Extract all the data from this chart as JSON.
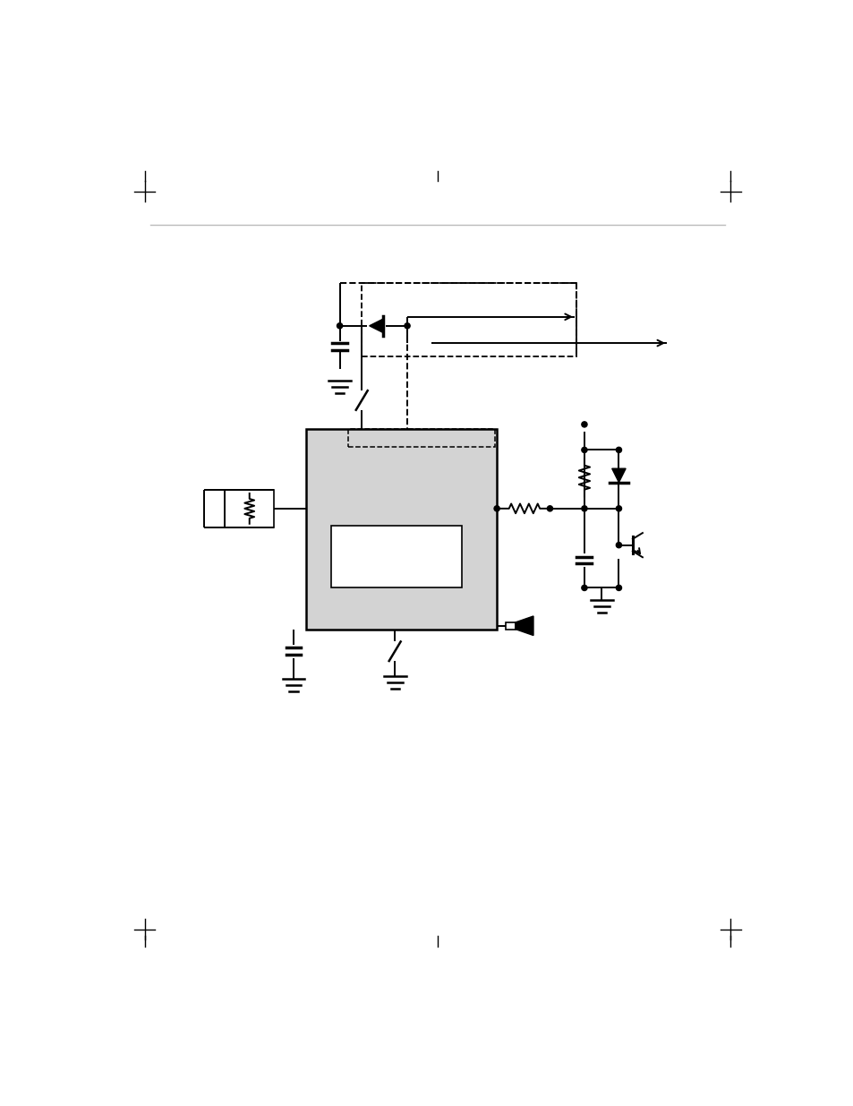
{
  "bg_color": "#ffffff",
  "line_color": "#000000",
  "box_fill": "#d3d3d3",
  "figsize": [
    9.54,
    12.35
  ],
  "dpi": 100
}
